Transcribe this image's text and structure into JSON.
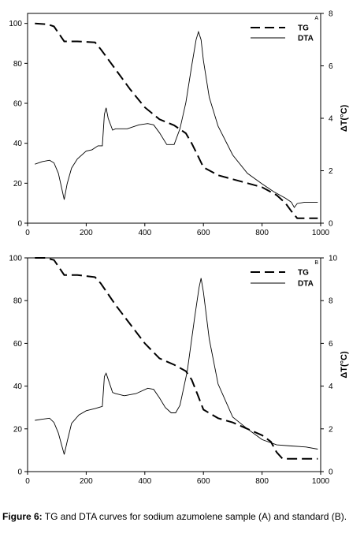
{
  "caption": {
    "label": "Figure 6:",
    "text": " TG and DTA curves for sodium azumolene sample (A) and standard (B)."
  },
  "chart_data": [
    {
      "type": "line",
      "panel_label": "A",
      "ylabel_right": "ΔT(°C)",
      "xlim": [
        0,
        1000
      ],
      "ylim_left": [
        0,
        105
      ],
      "ylim_right": [
        0,
        8
      ],
      "x_ticks": [
        0,
        200,
        400,
        600,
        800,
        1000
      ],
      "y_left_ticks": [
        0,
        20,
        40,
        60,
        80,
        100
      ],
      "y_right_ticks": [
        0,
        2,
        4,
        6,
        8
      ],
      "legend": "top-right",
      "series": [
        {
          "name": "TG",
          "axis": "left",
          "style": "dashed",
          "x": [
            25,
            70,
            90,
            125,
            170,
            230,
            250,
            300,
            350,
            400,
            450,
            500,
            540,
            560,
            580,
            600,
            650,
            700,
            750,
            800,
            850,
            880,
            900,
            920,
            990
          ],
          "y": [
            100,
            99.5,
            98.5,
            91,
            91,
            90.5,
            87,
            77,
            67,
            58,
            52,
            49,
            45,
            40,
            34,
            28,
            24,
            22,
            20,
            18,
            14,
            10,
            6,
            2.5,
            2.5
          ]
        },
        {
          "name": "DTA",
          "axis": "right",
          "style": "solid",
          "x": [
            25,
            50,
            75,
            90,
            105,
            115,
            125,
            135,
            150,
            170,
            200,
            220,
            240,
            255,
            262,
            268,
            275,
            290,
            300,
            320,
            340,
            380,
            410,
            430,
            450,
            475,
            500,
            520,
            540,
            560,
            575,
            583,
            592,
            600,
            620,
            650,
            700,
            750,
            800,
            840,
            880,
            900,
            910,
            920,
            945,
            990
          ],
          "y": [
            2.25,
            2.35,
            2.4,
            2.3,
            1.9,
            1.4,
            0.9,
            1.5,
            2.1,
            2.45,
            2.75,
            2.8,
            2.95,
            2.95,
            4.15,
            4.4,
            4.0,
            3.55,
            3.6,
            3.6,
            3.6,
            3.75,
            3.8,
            3.75,
            3.45,
            3.0,
            3.0,
            3.6,
            4.6,
            6.0,
            7.0,
            7.3,
            7.0,
            6.2,
            4.8,
            3.7,
            2.6,
            1.9,
            1.5,
            1.2,
            0.95,
            0.8,
            0.6,
            0.75,
            0.8,
            0.8
          ]
        }
      ]
    },
    {
      "type": "line",
      "panel_label": "B",
      "ylabel_right": "ΔT(°C)",
      "xlim": [
        0,
        1000
      ],
      "ylim_left": [
        0,
        100
      ],
      "ylim_right": [
        0,
        10
      ],
      "x_ticks": [
        0,
        200,
        400,
        600,
        800,
        1000
      ],
      "y_left_ticks": [
        0,
        20,
        40,
        60,
        80,
        100
      ],
      "y_right_ticks": [
        0,
        2,
        4,
        6,
        8,
        10
      ],
      "legend": "top-right",
      "series": [
        {
          "name": "TG",
          "axis": "left",
          "style": "dashed",
          "x": [
            25,
            60,
            90,
            125,
            170,
            230,
            250,
            300,
            350,
            400,
            450,
            500,
            540,
            560,
            580,
            600,
            650,
            700,
            750,
            800,
            830,
            850,
            870,
            990
          ],
          "y": [
            100,
            100,
            99,
            92,
            92,
            91,
            88,
            78,
            69,
            60,
            53,
            50,
            47,
            43,
            36,
            29,
            25,
            23,
            20,
            17,
            14,
            9,
            6,
            6
          ]
        },
        {
          "name": "DTA",
          "axis": "right",
          "style": "solid",
          "x": [
            25,
            50,
            75,
            90,
            105,
            115,
            125,
            135,
            150,
            175,
            200,
            230,
            255,
            262,
            268,
            278,
            290,
            300,
            330,
            370,
            410,
            430,
            450,
            470,
            490,
            505,
            520,
            545,
            570,
            585,
            592,
            600,
            620,
            650,
            700,
            750,
            800,
            850,
            900,
            950,
            990
          ],
          "y": [
            2.4,
            2.45,
            2.5,
            2.3,
            1.8,
            1.3,
            0.8,
            1.4,
            2.25,
            2.65,
            2.85,
            2.95,
            3.05,
            4.45,
            4.6,
            4.2,
            3.7,
            3.65,
            3.55,
            3.65,
            3.9,
            3.85,
            3.45,
            3.0,
            2.75,
            2.75,
            3.1,
            4.7,
            7.2,
            8.6,
            9.05,
            8.4,
            6.2,
            4.1,
            2.55,
            2.0,
            1.5,
            1.25,
            1.2,
            1.15,
            1.05
          ]
        }
      ]
    }
  ]
}
